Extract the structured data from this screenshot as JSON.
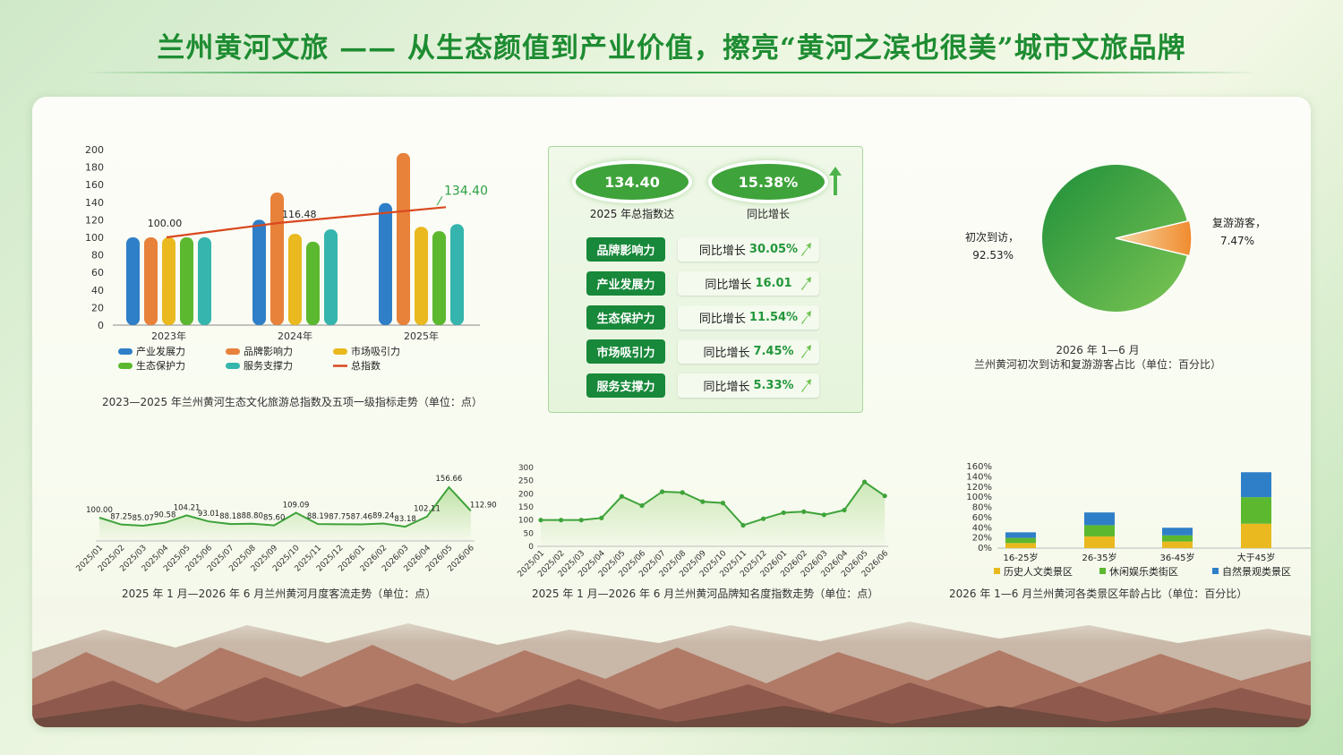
{
  "title": "兰州黄河文旅 —— 从生态颜值到产业价值，擦亮“黄河之滨也很美”城市文旅品牌",
  "colors": {
    "green": "#3ea33a",
    "dark_green": "#18883a",
    "blue": "#2f7fc8",
    "orange": "#e8813a",
    "yellow": "#e9b91f",
    "lime": "#5cb82f",
    "teal": "#35b5ad",
    "red": "#d9481f"
  },
  "kpi": {
    "total": {
      "value": "134.40",
      "label": "2025 年总指数达"
    },
    "yoy": {
      "value": "15.38%",
      "label": "同比增长"
    },
    "items": [
      {
        "name": "品牌影响力",
        "prefix": "同比增长",
        "value": "30.05%"
      },
      {
        "name": "产业发展力",
        "prefix": "同比增长",
        "value": "16.01"
      },
      {
        "name": "生态保护力",
        "prefix": "同比增长",
        "value": "11.54%"
      },
      {
        "name": "市场吸引力",
        "prefix": "同比增长",
        "value": "7.45%"
      },
      {
        "name": "服务支撑力",
        "prefix": "同比增长",
        "value": "5.33%"
      }
    ]
  },
  "chart_data": [
    {
      "id": "index_bar",
      "type": "bar",
      "caption": "2023—2025 年兰州黄河生态文化旅游总指数及五项一级指标走势（单位：点）",
      "categories": [
        "2023年",
        "2024年",
        "2025年"
      ],
      "ylim": [
        0,
        200
      ],
      "yticks": [
        "0",
        "20",
        "40",
        "60",
        "80",
        "100",
        "120",
        "140",
        "160",
        "180",
        "200"
      ],
      "series": [
        {
          "name": "产业发展力",
          "values": [
            100,
            120,
            139
          ]
        },
        {
          "name": "品牌影响力",
          "values": [
            100,
            151,
            196
          ]
        },
        {
          "name": "市场吸引力",
          "values": [
            100,
            104,
            112
          ]
        },
        {
          "name": "生态保护力",
          "values": [
            100,
            95,
            107
          ]
        },
        {
          "name": "服务支撑力",
          "values": [
            100,
            109,
            115
          ]
        }
      ],
      "line": {
        "name": "总指数",
        "values": [
          100,
          116.48,
          134.4
        ],
        "labels": [
          "100.00",
          "116.48",
          "134.40"
        ]
      }
    },
    {
      "id": "revisit_pie",
      "type": "pie",
      "caption1": "2026 年 1—6 月",
      "caption2": "兰州黄河初次到访和复游游客占比（单位：百分比）",
      "slices": [
        {
          "name": "初次到访，",
          "value": 92.53,
          "label": "92.53%"
        },
        {
          "name": "复游游客，",
          "value": 7.47,
          "label": "7.47%"
        }
      ]
    },
    {
      "id": "flow_line",
      "type": "area",
      "caption": "2025 年 1 月—2026 年 6 月兰州黄河月度客流走势（单位：点）",
      "x": [
        "2025/01",
        "2025/02",
        "2025/03",
        "2025/04",
        "2025/05",
        "2025/06",
        "2025/07",
        "2025/08",
        "2025/09",
        "2025/10",
        "2025/11",
        "2025/12",
        "2026/01",
        "2026/02",
        "2026/03",
        "2026/04",
        "2026/05",
        "2026/06"
      ],
      "values": [
        100,
        87.25,
        85.07,
        90.58,
        104.21,
        93.01,
        88.18,
        88.8,
        85.6,
        109.09,
        88.19,
        87.75,
        87.46,
        89.24,
        83.18,
        102.11,
        156.66,
        112.9
      ],
      "labels": [
        "100.00",
        "87.25",
        "85.07",
        "90.58",
        "104.21",
        "93.01",
        "88.18",
        "88.80",
        "85.60",
        "109.09",
        "88.19",
        "87.75",
        "87.46",
        "89.24",
        "83.18",
        "102.11",
        "156.66",
        "112.90"
      ]
    },
    {
      "id": "brand_line",
      "type": "line",
      "caption": "2025 年 1 月—2026 年 6 月兰州黄河品牌知名度指数走势（单位：点）",
      "x": [
        "2025/01",
        "2025/02",
        "2025/03",
        "2025/04",
        "2025/05",
        "2025/06",
        "2025/07",
        "2025/08",
        "2025/09",
        "2025/10",
        "2025/11",
        "2025/12",
        "2026/01",
        "2026/02",
        "2026/03",
        "2026/04",
        "2026/05",
        "2026/06"
      ],
      "values": [
        100,
        100,
        100,
        108,
        190,
        155,
        208,
        205,
        170,
        165,
        80,
        105,
        128,
        132,
        120,
        138,
        245,
        192
      ],
      "ylim": [
        0,
        300
      ],
      "yticks": [
        "0",
        "50",
        "100",
        "150",
        "200",
        "250",
        "300"
      ]
    },
    {
      "id": "age_bar",
      "type": "bar",
      "caption": "2026 年 1—6 月兰州黄河各类景区年龄占比（单位：百分比）",
      "categories": [
        "16-25岁",
        "26-35岁",
        "36-45岁",
        "大于45岁"
      ],
      "ylim": [
        0,
        160
      ],
      "yticks": [
        "0%",
        "20%",
        "40%",
        "60%",
        "80%",
        "100%",
        "120%",
        "140%",
        "160%"
      ],
      "series": [
        {
          "name": "历史人文类景区",
          "values": [
            10,
            23,
            13,
            48
          ]
        },
        {
          "name": "休闲娱乐类街区",
          "values": [
            10,
            22,
            12,
            52
          ]
        },
        {
          "name": "自然景观类景区",
          "values": [
            11,
            25,
            15,
            49
          ]
        }
      ]
    }
  ]
}
